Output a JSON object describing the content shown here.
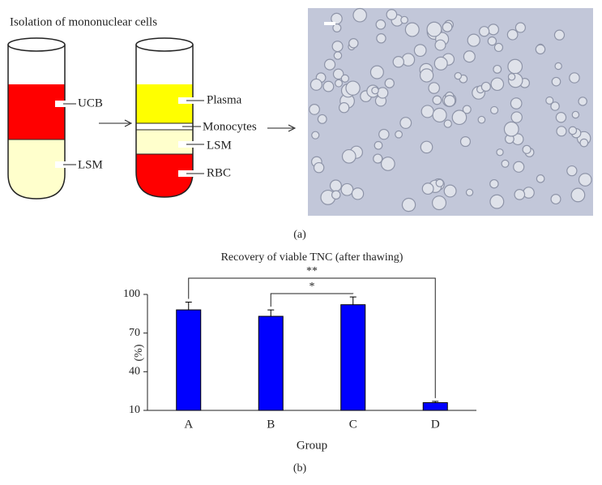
{
  "panel_a": {
    "title": "Isolation of mononuclear cells",
    "tube1": [
      "UCB",
      "LSM"
    ],
    "tube2": [
      "Plasma",
      "Monocytes",
      "LSM",
      "RBC"
    ],
    "caption": "(a)"
  },
  "chart_data": {
    "type": "bar",
    "title": "Recovery of viable TNC (after thawing)",
    "x_label": "Group",
    "y_label": "(%)",
    "categories": [
      "A",
      "B",
      "C",
      "D"
    ],
    "values": [
      88,
      83,
      92,
      16
    ],
    "errors": [
      6,
      5,
      6,
      1
    ],
    "color": "#0000ff",
    "ylim": [
      10,
      100
    ],
    "yticks": [
      10,
      40,
      70,
      100
    ],
    "annotations": [
      "**",
      "*"
    ]
  },
  "caption_b": "(b)"
}
